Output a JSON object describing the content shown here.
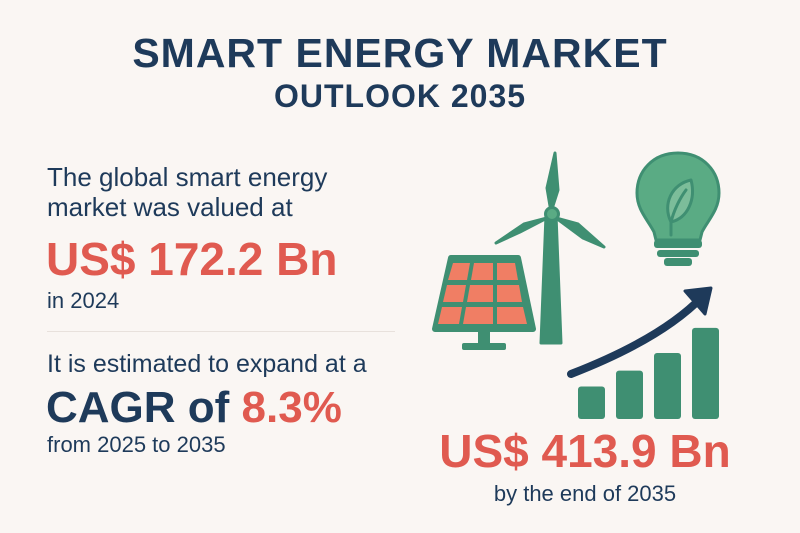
{
  "header": {
    "title_line1": "SMART ENERGY MARKET",
    "title_line2": "OUTLOOK 2035"
  },
  "current_market": {
    "intro_line1": "The global smart energy",
    "intro_line2": "market was valued at",
    "value": "US$ 172.2 Bn",
    "year_text": "in 2024"
  },
  "growth": {
    "intro": "It is estimated to expand at a",
    "cagr_label": "CAGR of",
    "cagr_value": "8.3%",
    "period": "from 2025 to 2035"
  },
  "forecast": {
    "value": "US$ 413.9 Bn",
    "subtitle": "by the end of 2035"
  },
  "illustration": {
    "icons": [
      "solar-panel-icon",
      "wind-turbine-icon",
      "lightbulb-leaf-icon",
      "growth-bar-chart-icon",
      "trend-arrow-icon"
    ],
    "growth_bars_relative": [
      0.35,
      0.52,
      0.71,
      0.98
    ]
  },
  "colors": {
    "background": "#faf6f3",
    "navy": "#1e3a5a",
    "accent_red": "#e05a50",
    "green": "#3f8f72",
    "light_green": "#5aab84",
    "solar_orange": "#f07e64"
  }
}
